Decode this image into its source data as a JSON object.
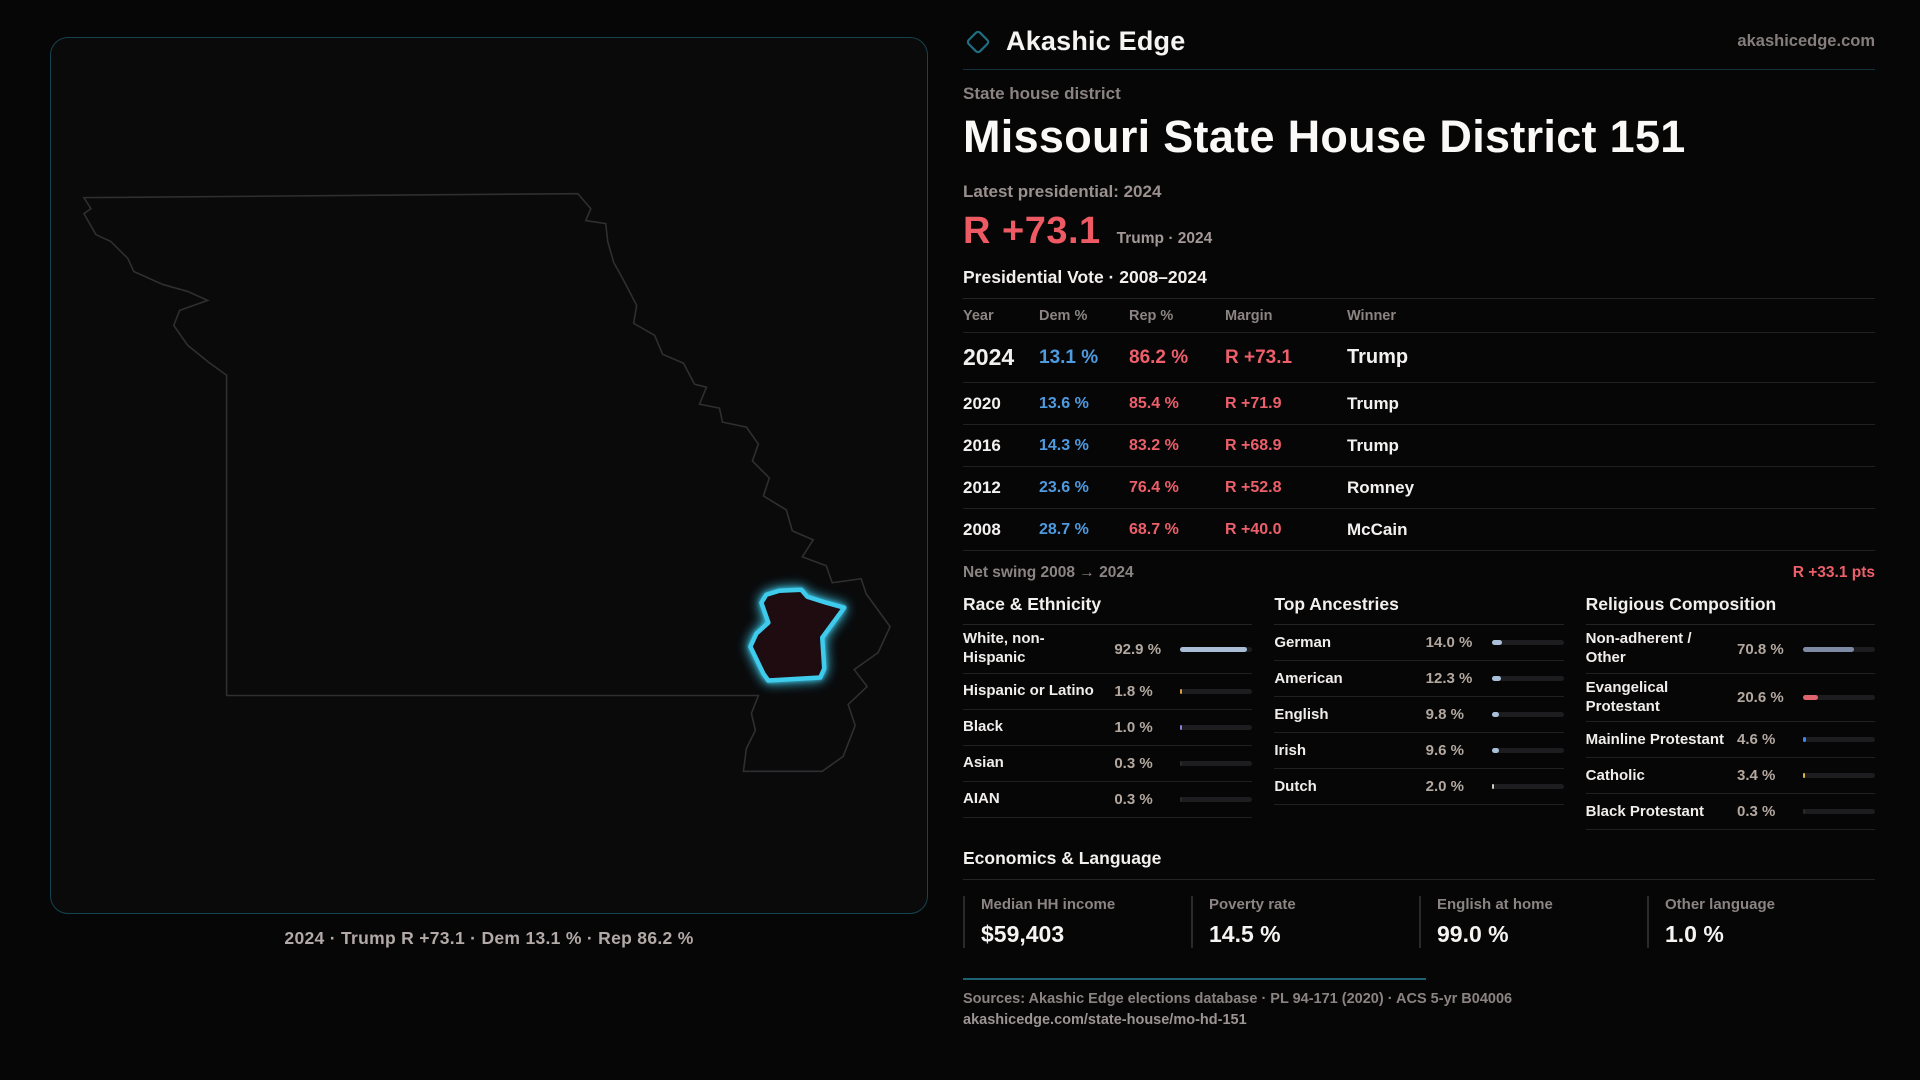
{
  "brand": {
    "name": "Akashic Edge",
    "domain": "akashicedge.com"
  },
  "eyebrow": "State house district",
  "title": "Missouri State House District 151",
  "latest_label": "Latest presidential: 2024",
  "headline": {
    "margin": "R +73.1",
    "note": "Trump · 2024"
  },
  "vote_table": {
    "title": "Presidential Vote · 2008–2024",
    "columns": {
      "year": "Year",
      "dem": "Dem %",
      "rep": "Rep %",
      "margin": "Margin",
      "winner": "Winner"
    },
    "rows": [
      {
        "year": "2024",
        "dem": "13.1 %",
        "rep": "86.2 %",
        "margin": "R +73.1",
        "winner": "Trump"
      },
      {
        "year": "2020",
        "dem": "13.6 %",
        "rep": "85.4 %",
        "margin": "R +71.9",
        "winner": "Trump"
      },
      {
        "year": "2016",
        "dem": "14.3 %",
        "rep": "83.2 %",
        "margin": "R +68.9",
        "winner": "Trump"
      },
      {
        "year": "2012",
        "dem": "23.6 %",
        "rep": "76.4 %",
        "margin": "R +52.8",
        "winner": "Romney"
      },
      {
        "year": "2008",
        "dem": "28.7 %",
        "rep": "68.7 %",
        "margin": "R +40.0",
        "winner": "McCain"
      }
    ],
    "net_swing_label": "Net swing 2008 → 2024",
    "net_swing_value": "R +33.1 pts"
  },
  "demographics": {
    "race": {
      "title": "Race & Ethnicity",
      "rows": [
        {
          "label": "White, non-Hispanic",
          "value": "92.9 %",
          "pct": 92.9,
          "color": "#a9bdd6"
        },
        {
          "label": "Hispanic or Latino",
          "value": "1.8 %",
          "pct": 1.8,
          "color": "#d99a45"
        },
        {
          "label": "Black",
          "value": "1.0 %",
          "pct": 1.0,
          "color": "#8b7ce0"
        },
        {
          "label": "Asian",
          "value": "0.3 %",
          "pct": 0.3,
          "color": "#2a2a2e"
        },
        {
          "label": "AIAN",
          "value": "0.3 %",
          "pct": 0.3,
          "color": "#2a2a2e"
        }
      ]
    },
    "ancestry": {
      "title": "Top Ancestries",
      "rows": [
        {
          "label": "German",
          "value": "14.0 %",
          "pct": 14.0,
          "color": "#a9c0d8"
        },
        {
          "label": "American",
          "value": "12.3 %",
          "pct": 12.3,
          "color": "#a9c0d8"
        },
        {
          "label": "English",
          "value": "9.8 %",
          "pct": 9.8,
          "color": "#a9c0d8"
        },
        {
          "label": "Irish",
          "value": "9.6 %",
          "pct": 9.6,
          "color": "#a9c0d8"
        },
        {
          "label": "Dutch",
          "value": "2.0 %",
          "pct": 2.0,
          "color": "#cfcac4"
        }
      ]
    },
    "religion": {
      "title": "Religious Composition",
      "rows": [
        {
          "label": "Non-adherent / Other",
          "value": "70.8 %",
          "pct": 70.8,
          "color": "#7e8aa4"
        },
        {
          "label": "Evangelical Protestant",
          "value": "20.6 %",
          "pct": 20.6,
          "color": "#e0646e"
        },
        {
          "label": "Mainline Protestant",
          "value": "4.6 %",
          "pct": 4.6,
          "color": "#3f86e8"
        },
        {
          "label": "Catholic",
          "value": "3.4 %",
          "pct": 3.4,
          "color": "#ddb43f"
        },
        {
          "label": "Black Protestant",
          "value": "0.3 %",
          "pct": 0.3,
          "color": "#2a2a2e"
        }
      ]
    }
  },
  "economics": {
    "title": "Economics & Language",
    "stats": [
      {
        "label": "Median HH income",
        "value": "$59,403"
      },
      {
        "label": "Poverty rate",
        "value": "14.5 %"
      },
      {
        "label": "English at home",
        "value": "99.0 %"
      },
      {
        "label": "Other language",
        "value": "1.0 %"
      }
    ]
  },
  "footer": {
    "sources": "Sources: Akashic Edge elections database · PL 94-171 (2020) · ACS 5-yr B04006",
    "permalink": "akashicedge.com/state-house/mo-hd-151"
  },
  "map": {
    "caption": "2024 · Trump R +73.1 · Dem 13.1 % · Rep 86.2 %",
    "state_stroke": "#2f2f31",
    "district_stroke": "#3ecbec",
    "logo_stroke": "#1e6f82"
  },
  "chart_data": [
    {
      "type": "table",
      "title": "Presidential Vote · 2008–2024",
      "columns": [
        "Year",
        "Dem %",
        "Rep %",
        "Margin",
        "Winner"
      ],
      "rows": [
        [
          2024,
          13.1,
          86.2,
          "R +73.1",
          "Trump"
        ],
        [
          2020,
          13.6,
          85.4,
          "R +71.9",
          "Trump"
        ],
        [
          2016,
          14.3,
          83.2,
          "R +68.9",
          "Trump"
        ],
        [
          2012,
          23.6,
          76.4,
          "R +52.8",
          "Romney"
        ],
        [
          2008,
          28.7,
          68.7,
          "R +40.0",
          "McCain"
        ]
      ],
      "net_swing_2008_2024_pts": 33.1
    },
    {
      "type": "bar",
      "title": "Race & Ethnicity",
      "unit": "%",
      "xlim": [
        0,
        100
      ],
      "categories": [
        "White, non-Hispanic",
        "Hispanic or Latino",
        "Black",
        "Asian",
        "AIAN"
      ],
      "values": [
        92.9,
        1.8,
        1.0,
        0.3,
        0.3
      ]
    },
    {
      "type": "bar",
      "title": "Top Ancestries",
      "unit": "%",
      "xlim": [
        0,
        100
      ],
      "categories": [
        "German",
        "American",
        "English",
        "Irish",
        "Dutch"
      ],
      "values": [
        14.0,
        12.3,
        9.8,
        9.6,
        2.0
      ]
    },
    {
      "type": "bar",
      "title": "Religious Composition",
      "unit": "%",
      "xlim": [
        0,
        100
      ],
      "categories": [
        "Non-adherent / Other",
        "Evangelical Protestant",
        "Mainline Protestant",
        "Catholic",
        "Black Protestant"
      ],
      "values": [
        70.8,
        20.6,
        4.6,
        3.4,
        0.3
      ]
    },
    {
      "type": "bar",
      "title": "Economics & Language",
      "categories": [
        "Median HH income",
        "Poverty rate",
        "English at home",
        "Other language"
      ],
      "values": [
        59403,
        14.5,
        99.0,
        1.0
      ]
    }
  ]
}
